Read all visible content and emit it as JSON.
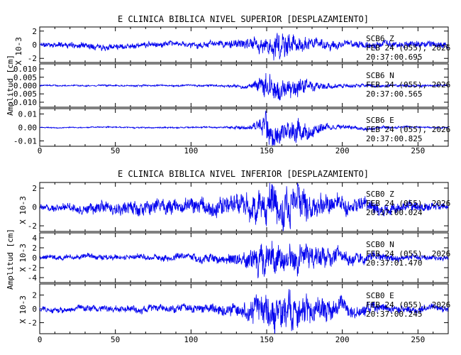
{
  "colors": {
    "trace": "#0000ee",
    "axis": "#000000",
    "background": "#ffffff"
  },
  "chart_data": [
    {
      "type": "line",
      "title": "E CLINICA BIBLICA NIVEL SUPERIOR [DESPLAZAMIENTO]",
      "ylabel": "Amplitud [cm]",
      "xlim": [
        0,
        270
      ],
      "xticks": [
        0,
        50,
        100,
        150,
        200,
        250
      ],
      "show_x_tick_labels": true,
      "grid": false,
      "panels": [
        {
          "station": "SCB6",
          "component": "Z",
          "date": "FEB 24 (055), 2026",
          "time": "20:37:00.695",
          "scale_label": "X 10-3",
          "ylim": [
            -2.6,
            2.6
          ],
          "yticks": [
            -2,
            0,
            2
          ],
          "ytick_labels": [
            "-2",
            "0",
            "2"
          ],
          "envelope": [
            [
              0,
              0.4
            ],
            [
              40,
              0.5
            ],
            [
              90,
              0.4
            ],
            [
              120,
              0.5
            ],
            [
              135,
              0.8
            ],
            [
              150,
              1.3
            ],
            [
              160,
              2.3
            ],
            [
              170,
              1.2
            ],
            [
              200,
              0.6
            ],
            [
              270,
              0.5
            ]
          ],
          "seed": 11
        },
        {
          "station": "SCB6",
          "component": "N",
          "date": "FEB 24 (055), 2026",
          "time": "20:37:00.565",
          "scale_label": "",
          "ylim": [
            -0.013,
            0.013
          ],
          "yticks": [
            -0.01,
            -0.005,
            0.0,
            0.005,
            0.01
          ],
          "ytick_labels": [
            "-0.010",
            "-0.005",
            "0.000",
            "0.005",
            "0.010"
          ],
          "envelope": [
            [
              0,
              0.0004
            ],
            [
              120,
              0.0006
            ],
            [
              140,
              0.0015
            ],
            [
              150,
              0.008
            ],
            [
              160,
              0.006
            ],
            [
              175,
              0.005
            ],
            [
              185,
              0.002
            ],
            [
              215,
              0.001
            ],
            [
              270,
              0.0005
            ]
          ],
          "seed": 23
        },
        {
          "station": "SCB6",
          "component": "E",
          "date": "FEB 24 (055), 2026",
          "time": "20:37:00.825",
          "scale_label": "",
          "ylim": [
            -0.014,
            0.014
          ],
          "yticks": [
            -0.01,
            0.0,
            0.01
          ],
          "ytick_labels": [
            "-0.01",
            "0.00",
            "0.01"
          ],
          "envelope": [
            [
              0,
              0.0004
            ],
            [
              120,
              0.0006
            ],
            [
              140,
              0.002
            ],
            [
              150,
              0.011
            ],
            [
              158,
              0.009
            ],
            [
              170,
              0.008
            ],
            [
              180,
              0.005
            ],
            [
              195,
              0.002
            ],
            [
              230,
              0.001
            ],
            [
              270,
              0.0005
            ]
          ],
          "seed": 37
        }
      ]
    },
    {
      "type": "line",
      "title": "E CLINICA BIBLICA NIVEL INFERIOR [DESPLAZAMIENTO]",
      "ylabel": "Amplitud [cm]",
      "xlim": [
        0,
        270
      ],
      "xticks": [
        0,
        50,
        100,
        150,
        200,
        250
      ],
      "show_x_tick_labels": true,
      "grid": false,
      "panels": [
        {
          "station": "SCB0",
          "component": "Z",
          "date": "FEB 24 (055), 2026",
          "time": "20:37:00.024",
          "scale_label": "X 10-3",
          "ylim": [
            -2.6,
            2.6
          ],
          "yticks": [
            -2,
            0,
            2
          ],
          "ytick_labels": [
            "-2",
            "0",
            "2"
          ],
          "envelope": [
            [
              0,
              0.3
            ],
            [
              40,
              0.7
            ],
            [
              80,
              0.8
            ],
            [
              110,
              0.9
            ],
            [
              130,
              1.2
            ],
            [
              150,
              2.0
            ],
            [
              165,
              2.4
            ],
            [
              180,
              1.5
            ],
            [
              210,
              0.8
            ],
            [
              270,
              0.4
            ]
          ],
          "seed": 51
        },
        {
          "station": "SCB0",
          "component": "N",
          "date": "FEB 24 (055), 2026",
          "time": "20:37:01.470",
          "scale_label": "X 10-3",
          "ylim": [
            -5.0,
            5.0
          ],
          "yticks": [
            -4,
            -2,
            0,
            2,
            4
          ],
          "ytick_labels": [
            "-4",
            "-2",
            "0",
            "2",
            "4"
          ],
          "envelope": [
            [
              0,
              0.5
            ],
            [
              100,
              0.7
            ],
            [
              135,
              1.5
            ],
            [
              150,
              4.2
            ],
            [
              160,
              3.0
            ],
            [
              180,
              2.5
            ],
            [
              200,
              1.5
            ],
            [
              230,
              0.8
            ],
            [
              270,
              0.5
            ]
          ],
          "seed": 67
        },
        {
          "station": "SCB0",
          "component": "E",
          "date": "FEB 24 (055), 2026",
          "time": "20:37:00.245",
          "scale_label": "X 10-3",
          "ylim": [
            -3.6,
            3.6
          ],
          "yticks": [
            -2,
            0,
            2
          ],
          "ytick_labels": [
            "-2",
            "0",
            "2"
          ],
          "envelope": [
            [
              0,
              0.4
            ],
            [
              100,
              0.6
            ],
            [
              130,
              1.0
            ],
            [
              150,
              2.8
            ],
            [
              160,
              3.0
            ],
            [
              180,
              2.2
            ],
            [
              200,
              1.2
            ],
            [
              230,
              0.7
            ],
            [
              270,
              0.5
            ]
          ],
          "seed": 79
        }
      ]
    }
  ]
}
